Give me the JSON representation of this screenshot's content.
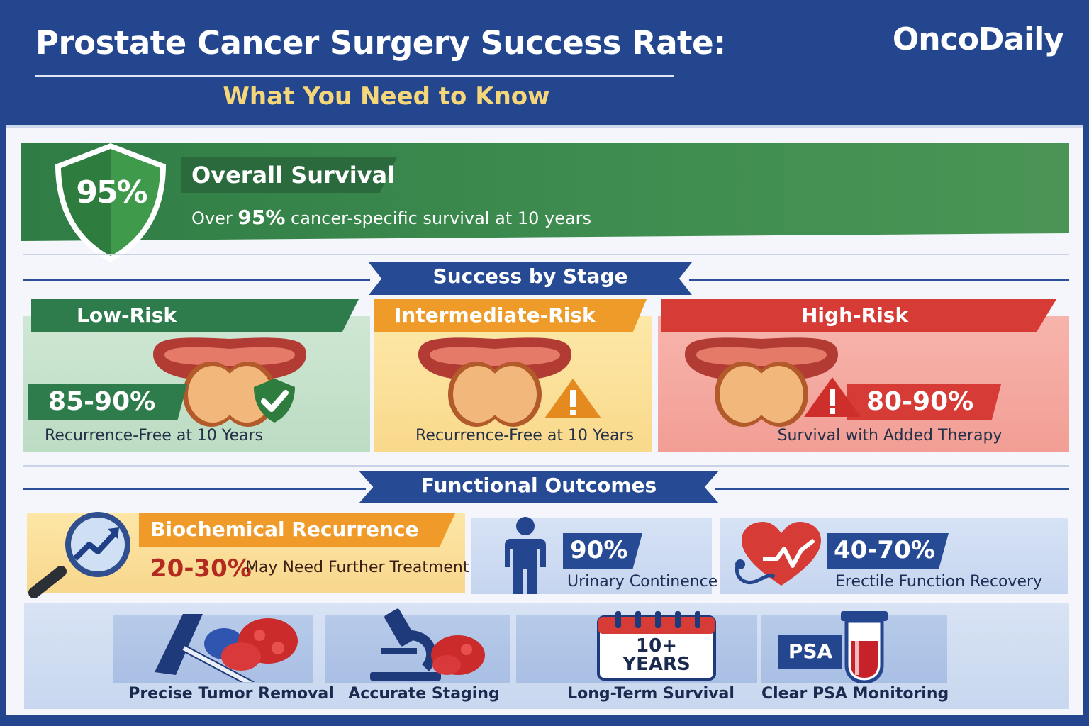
{
  "header": {
    "title": "Prostate Cancer Surgery Success Rate:",
    "subtitle": "What You Need to Know",
    "brand": "OncoDaily"
  },
  "overall": {
    "badge_value": "95%",
    "title": "Overall Survival",
    "desc_prefix": "Over",
    "desc_value": "95%",
    "desc_suffix": "cancer-specific survival at 10 years"
  },
  "stage_section": {
    "title": "Success by Stage",
    "cards": [
      {
        "label": "Low-Risk",
        "value": "85-90%",
        "caption": "Recurrence-Free at 10 Years",
        "icon": "checkmark-icon",
        "color": "#2e7c4c"
      },
      {
        "label": "Intermediate-Risk",
        "value": "",
        "caption": "Recurrence-Free at 10 Years",
        "icon": "warning-icon",
        "color": "#ef9b2a"
      },
      {
        "label": "High-Risk",
        "value": "80-90%",
        "caption": "Survival with Added Therapy",
        "icon": "warning-icon",
        "color": "#d63b36"
      }
    ]
  },
  "outcomes_section": {
    "title": "Functional Outcomes",
    "biochemical": {
      "title": "Biochemical Recurrence",
      "value": "20-30%",
      "desc": "May Need Further Treatment",
      "icon": "magnifier-trend-icon"
    },
    "urinary": {
      "value": "90%",
      "desc": "Urinary Continence",
      "icon": "person-icon"
    },
    "erectile": {
      "value": "40-70%",
      "desc": "Erectile Function Recovery",
      "icon": "heart-pulse-icon"
    }
  },
  "benefits": {
    "items": [
      {
        "label": "Precise Tumor Removal",
        "icon": "surgical-tool-icon"
      },
      {
        "label": "Accurate Staging",
        "icon": "microscope-icon"
      },
      {
        "label": "Long-Term Survival",
        "icon": "calendar-icon",
        "calendar_text_1": "10+",
        "calendar_text_2": "YEARS"
      },
      {
        "label": "Clear PSA Monitoring",
        "icon": "test-tube-icon",
        "tag": "PSA"
      }
    ]
  },
  "colors": {
    "navy": "#24468f",
    "green": "#2e7c4c",
    "orange": "#ef9b2a",
    "red": "#d63b36",
    "gold": "#f5d77a"
  }
}
